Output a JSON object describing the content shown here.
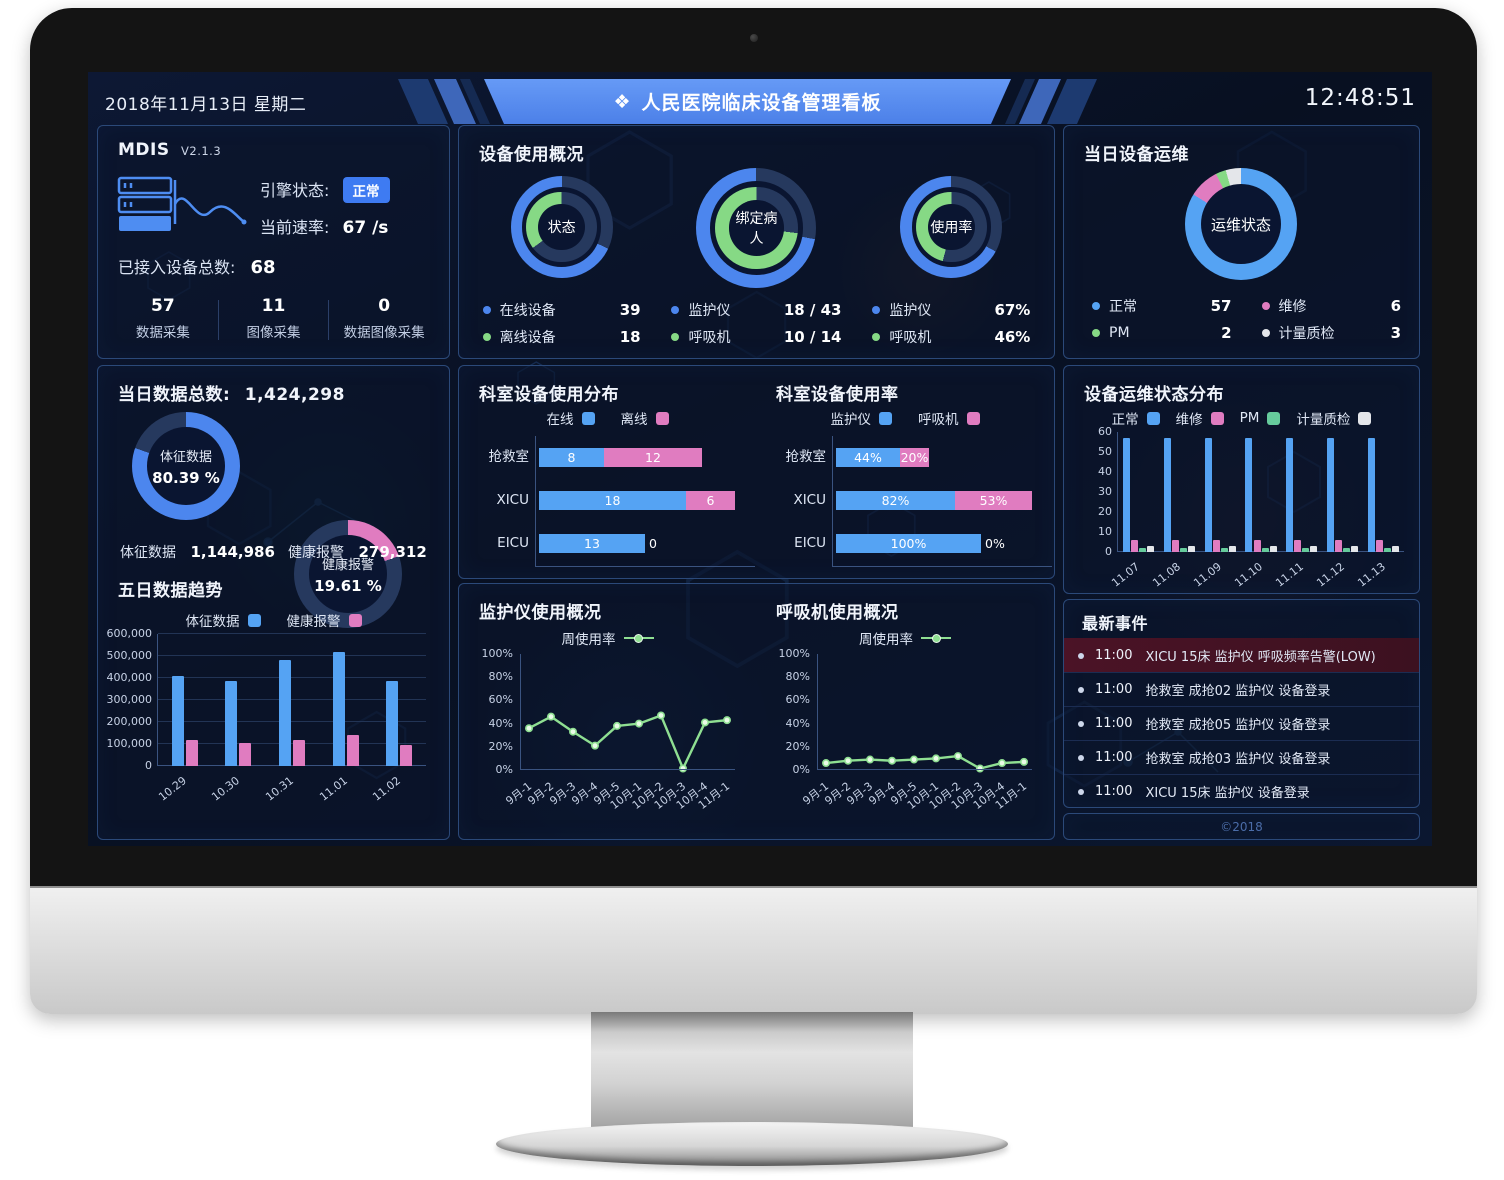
{
  "header": {
    "date": "2018年11月13日 星期二",
    "title": "人民医院临床设备管理看板",
    "title_icon": "medical-diamonds-icon",
    "time": "12:48:51"
  },
  "colors": {
    "blue": "#4c86ee",
    "bar_blue": "#55a3f3",
    "pink": "#e07cc0",
    "green": "#86d985",
    "pm_green": "#66cb9c",
    "line_green": "#8fdf92",
    "white_series": "#e4e6ea",
    "ring_dark": "#26395e"
  },
  "mdis": {
    "title": "MDIS",
    "version": "V2.1.3",
    "engine_label": "引擎状态:",
    "engine_status": "正常",
    "rate_label": "当前速率:",
    "rate_value": "67 /s",
    "connected_label": "已接入设备总数:",
    "connected_value": "68",
    "stats": [
      {
        "value": "57",
        "label": "数据采集"
      },
      {
        "value": "11",
        "label": "图像采集"
      },
      {
        "value": "0",
        "label": "数据图像采集"
      }
    ]
  },
  "panels": {
    "device_usage": {
      "title": "设备使用概况"
    },
    "daily_maintenance": {
      "title": "当日设备运维"
    },
    "daily_data": {
      "title_label": "当日数据总数:",
      "total": "1,424,298",
      "stats": [
        {
          "label": "体征数据",
          "value": "1,144,986"
        },
        {
          "label": "健康报警",
          "value": "279,312"
        }
      ]
    }
  },
  "events": {
    "title": "最新事件",
    "items": [
      {
        "time": "11:00",
        "text": "XICU 15床 监护仪 呼吸频率告警(LOW)",
        "alert": true
      },
      {
        "time": "11:00",
        "text": "抢救室 成抢02 监护仪 设备登录",
        "alert": false
      },
      {
        "time": "11:00",
        "text": "抢救室 成抢05 监护仪 设备登录",
        "alert": false
      },
      {
        "time": "11:00",
        "text": "抢救室 成抢03 监护仪 设备登录",
        "alert": false
      },
      {
        "time": "11:00",
        "text": "XICU 15床 监护仪 设备登录",
        "alert": false
      }
    ]
  },
  "footer": {
    "copyright": "©2018"
  },
  "chart_data": [
    {
      "id": "status_donut",
      "type": "donut-double",
      "center_label": "状态",
      "rings": {
        "outer": {
          "pct": 68,
          "color": "blue"
        },
        "inner": {
          "pct": 35,
          "color": "green"
        }
      },
      "legend": [
        {
          "label": "在线设备",
          "value": "39",
          "color": "blue"
        },
        {
          "label": "离线设备",
          "value": "18",
          "color": "green"
        }
      ]
    },
    {
      "id": "bind_donut",
      "type": "donut-double",
      "center_label": "绑定病人",
      "rings": {
        "outer": {
          "pct": 72,
          "color": "blue"
        },
        "inner": {
          "pct": 73,
          "color": "green"
        }
      },
      "legend": [
        {
          "label": "监护仪",
          "value": "18 / 43",
          "color": "blue"
        },
        {
          "label": "呼吸机",
          "value": "10 / 14",
          "color": "green"
        }
      ]
    },
    {
      "id": "rate_donut",
      "type": "donut-double",
      "center_label": "使用率",
      "rings": {
        "outer": {
          "pct": 67,
          "color": "blue"
        },
        "inner": {
          "pct": 46,
          "color": "green"
        }
      },
      "legend": [
        {
          "label": "监护仪",
          "value": "67%",
          "color": "blue"
        },
        {
          "label": "呼吸机",
          "value": "46%",
          "color": "green"
        }
      ]
    },
    {
      "id": "maintenance_donut",
      "type": "pie-ring",
      "center_label": "运维状态",
      "segments": [
        {
          "label": "正常",
          "value": 57,
          "color": "bar_blue"
        },
        {
          "label": "维修",
          "value": 6,
          "color": "pink"
        },
        {
          "label": "PM",
          "value": 2,
          "color": "green"
        },
        {
          "label": "计量质检",
          "value": 3,
          "color": "white_series"
        }
      ]
    },
    {
      "id": "vital_ring",
      "type": "ring-pct",
      "label": "体征数据",
      "pct": 80.39,
      "pct_text": "80.39 %",
      "color": "blue"
    },
    {
      "id": "alarm_ring",
      "type": "ring-pct",
      "label": "健康报警",
      "pct": 19.61,
      "pct_text": "19.61 %",
      "color": "pink"
    },
    {
      "id": "five_day_trend",
      "type": "bar",
      "title": "五日数据趋势",
      "categories": [
        "10.29",
        "10.30",
        "10.31",
        "11.01",
        "11.02"
      ],
      "series": [
        {
          "name": "体征数据",
          "color": "bar_blue",
          "values": [
            410000,
            385000,
            480000,
            520000,
            385000
          ]
        },
        {
          "name": "健康报警",
          "color": "pink",
          "values": [
            120000,
            105000,
            120000,
            140000,
            95000
          ]
        }
      ],
      "ylim": [
        0,
        600000
      ],
      "yticks": [
        "0",
        "100,000",
        "200,000",
        "300,000",
        "400,000",
        "500,000",
        "600,000"
      ],
      "grid": true,
      "legend_position": "top"
    },
    {
      "id": "dept_distribution",
      "type": "bar-horizontal-stacked",
      "title": "科室设备使用分布",
      "categories": [
        "抢救室",
        "XICU",
        "EICU"
      ],
      "series": [
        {
          "name": "在线",
          "color": "bar_blue",
          "values": [
            8,
            18,
            13
          ],
          "suffix": ""
        },
        {
          "name": "离线",
          "color": "pink",
          "values": [
            12,
            6,
            0
          ],
          "suffix": ""
        }
      ],
      "xmax": 24
    },
    {
      "id": "dept_usage",
      "type": "bar-horizontal-stacked",
      "title": "科室设备使用率",
      "categories": [
        "抢救室",
        "XICU",
        "EICU"
      ],
      "series": [
        {
          "name": "监护仪",
          "color": "bar_blue",
          "values": [
            44,
            82,
            100
          ],
          "suffix": "%"
        },
        {
          "name": "呼吸机",
          "color": "pink",
          "values": [
            20,
            53,
            0
          ],
          "suffix": "%"
        }
      ],
      "xmax": 135
    },
    {
      "id": "monitor_usage",
      "type": "line",
      "title": "监护仪使用概况",
      "legend_label": "周使用率",
      "categories": [
        "9月-1",
        "9月-2",
        "9月-3",
        "9月-4",
        "9月-5",
        "10月-1",
        "10月-2",
        "10月-3",
        "10月-4",
        "11月-1"
      ],
      "values": [
        36,
        46,
        33,
        21,
        38,
        40,
        47,
        0,
        41,
        43
      ],
      "ylim": [
        0,
        100
      ],
      "yticks": [
        "0%",
        "20%",
        "40%",
        "60%",
        "80%",
        "100%"
      ],
      "color": "line_green"
    },
    {
      "id": "ventilator_usage",
      "type": "line",
      "title": "呼吸机使用概况",
      "legend_label": "周使用率",
      "categories": [
        "9月-1",
        "9月-2",
        "9月-3",
        "9月-4",
        "9月-5",
        "10月-1",
        "10月-2",
        "10月-3",
        "10月-4",
        "11月-1"
      ],
      "values": [
        6,
        8,
        9,
        8,
        9,
        10,
        12,
        0,
        6,
        7
      ],
      "ylim": [
        0,
        100
      ],
      "yticks": [
        "0%",
        "20%",
        "40%",
        "60%",
        "80%",
        "100%"
      ],
      "color": "line_green"
    },
    {
      "id": "maintenance_distribution",
      "type": "bar",
      "title": "设备运维状态分布",
      "categories": [
        "11.07",
        "11.08",
        "11.09",
        "11.10",
        "11.11",
        "11.12",
        "11.13"
      ],
      "series": [
        {
          "name": "正常",
          "color": "bar_blue",
          "values": [
            57,
            57,
            57,
            57,
            57,
            57,
            57
          ]
        },
        {
          "name": "维修",
          "color": "pink",
          "values": [
            6,
            6,
            6,
            6,
            6,
            6,
            6
          ]
        },
        {
          "name": "PM",
          "color": "pm_green",
          "values": [
            2,
            2,
            2,
            2,
            2,
            2,
            2
          ]
        },
        {
          "name": "计量质检",
          "color": "white_series",
          "values": [
            3,
            3,
            3,
            3,
            3,
            3,
            3
          ]
        }
      ],
      "ylim": [
        0,
        60
      ],
      "yticks": [
        "0",
        "10",
        "20",
        "30",
        "40",
        "50",
        "60"
      ],
      "grid": false
    }
  ]
}
